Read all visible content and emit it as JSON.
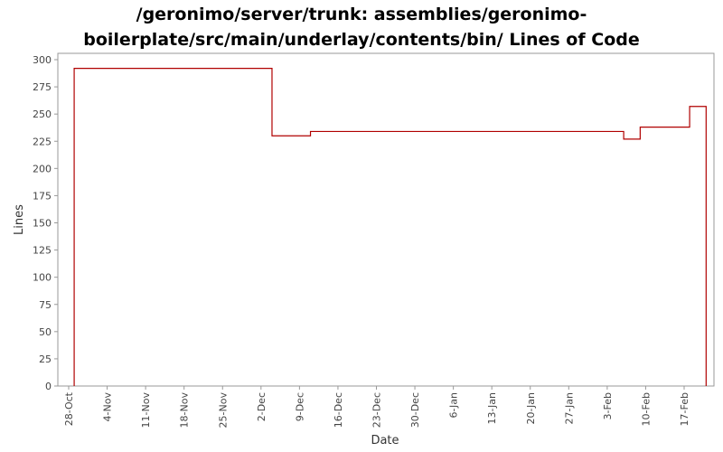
{
  "chart_data": {
    "type": "line",
    "step": true,
    "title_lines": [
      "/geronimo/server/trunk: assemblies/geronimo-",
      "boilerplate/src/main/underlay/contents/bin/ Lines of Code"
    ],
    "xlabel": "Date",
    "ylabel": "Lines",
    "ylim": [
      0,
      300
    ],
    "yticks": [
      0,
      25,
      50,
      75,
      100,
      125,
      150,
      175,
      200,
      225,
      250,
      275,
      300
    ],
    "xlim": [
      "2004-10-26",
      "2006-02-24"
    ],
    "xticks": [
      {
        "date": "2004-10-28",
        "label": "28-Oct"
      },
      {
        "date": "2004-11-04",
        "label": "4-Nov"
      },
      {
        "date": "2004-11-11",
        "label": "11-Nov"
      },
      {
        "date": "2004-11-18",
        "label": "18-Nov"
      },
      {
        "date": "2004-11-25",
        "label": "25-Nov"
      },
      {
        "date": "2004-12-02",
        "label": "2-Dec"
      },
      {
        "date": "2004-12-09",
        "label": "9-Dec"
      },
      {
        "date": "2004-12-16",
        "label": "16-Dec"
      },
      {
        "date": "2004-12-23",
        "label": "23-Dec"
      },
      {
        "date": "2004-12-30",
        "label": "30-Dec"
      },
      {
        "date": "2005-01-06",
        "label": "6-Jan"
      },
      {
        "date": "2005-01-13",
        "label": "13-Jan"
      },
      {
        "date": "2005-01-20",
        "label": "20-Jan"
      },
      {
        "date": "2005-01-27",
        "label": "27-Jan"
      },
      {
        "date": "2005-02-03",
        "label": "3-Feb"
      },
      {
        "date": "2005-02-10",
        "label": "10-Feb"
      },
      {
        "date": "2005-02-17",
        "label": "17-Feb"
      }
    ],
    "series": [
      {
        "color": "#b00000",
        "points": [
          {
            "x": "2004-10-29",
            "y": 0
          },
          {
            "x": "2004-10-29",
            "y": 292
          },
          {
            "x": "2004-12-04",
            "y": 230
          },
          {
            "x": "2004-12-11",
            "y": 234
          },
          {
            "x": "2005-02-06",
            "y": 227
          },
          {
            "x": "2005-02-09",
            "y": 238
          },
          {
            "x": "2005-02-18",
            "y": 257
          },
          {
            "x": "2005-02-21",
            "y": 0
          }
        ]
      }
    ],
    "grid": false,
    "legend": "none"
  }
}
